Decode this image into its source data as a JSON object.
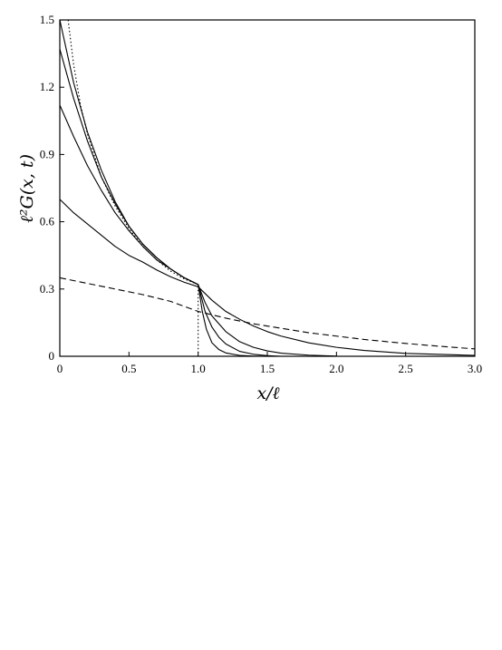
{
  "chart_data": {
    "type": "line",
    "xlabel": "x/ℓ",
    "ylabel": "ℓ²G(x, t)",
    "xlim": [
      0,
      3.0
    ],
    "ylim": [
      0,
      1.5
    ],
    "xticks": [
      {
        "value": 0,
        "label": "0"
      },
      {
        "value": 0.5,
        "label": "0.5"
      },
      {
        "value": 1.0,
        "label": "1.0"
      },
      {
        "value": 1.5,
        "label": "1.5"
      },
      {
        "value": 2.0,
        "label": "2.0"
      },
      {
        "value": 2.5,
        "label": "2.5"
      },
      {
        "value": 3.0,
        "label": "3.0"
      }
    ],
    "yticks": [
      {
        "value": 0,
        "label": "0"
      },
      {
        "value": 0.3,
        "label": "0.3"
      },
      {
        "value": 0.6,
        "label": "0.6"
      },
      {
        "value": 0.9,
        "label": "0.9"
      },
      {
        "value": 1.2,
        "label": "1.2"
      },
      {
        "value": 1.5,
        "label": "1.5"
      }
    ],
    "grid": false,
    "series": [
      {
        "style": "dotted",
        "color": "#000000",
        "x": [
          0.06,
          0.1,
          0.15,
          0.2,
          0.3,
          0.4,
          0.5,
          0.6,
          0.7,
          0.8,
          0.9,
          1.0,
          1.0
        ],
        "y": [
          1.5,
          1.3,
          1.12,
          0.99,
          0.8,
          0.67,
          0.57,
          0.49,
          0.43,
          0.38,
          0.345,
          0.32,
          0.0
        ]
      },
      {
        "style": "solid",
        "color": "#000000",
        "x": [
          0,
          0.05,
          0.1,
          0.2,
          0.3,
          0.4,
          0.5,
          0.6,
          0.7,
          0.8,
          0.9,
          1.0,
          1.03,
          1.06,
          1.1,
          1.15,
          1.2,
          1.3,
          1.4,
          1.5
        ],
        "y": [
          1.5,
          1.36,
          1.22,
          1.0,
          0.83,
          0.69,
          0.58,
          0.5,
          0.44,
          0.39,
          0.35,
          0.32,
          0.2,
          0.12,
          0.06,
          0.03,
          0.015,
          0.004,
          0.001,
          0.0
        ]
      },
      {
        "style": "solid",
        "color": "#000000",
        "x": [
          0,
          0.1,
          0.2,
          0.3,
          0.4,
          0.5,
          0.6,
          0.7,
          0.8,
          0.9,
          1.0,
          1.05,
          1.1,
          1.15,
          1.2,
          1.3,
          1.4,
          1.5,
          1.6
        ],
        "y": [
          1.37,
          1.15,
          0.96,
          0.8,
          0.68,
          0.58,
          0.5,
          0.44,
          0.39,
          0.35,
          0.32,
          0.2,
          0.13,
          0.085,
          0.055,
          0.022,
          0.009,
          0.003,
          0.0
        ]
      },
      {
        "style": "solid",
        "color": "#000000",
        "x": [
          0,
          0.1,
          0.2,
          0.3,
          0.4,
          0.5,
          0.6,
          0.7,
          0.8,
          0.9,
          1.0,
          1.05,
          1.1,
          1.2,
          1.3,
          1.4,
          1.5,
          1.6,
          1.8,
          2.0
        ],
        "y": [
          1.12,
          0.98,
          0.85,
          0.74,
          0.64,
          0.56,
          0.49,
          0.43,
          0.39,
          0.35,
          0.32,
          0.24,
          0.18,
          0.11,
          0.065,
          0.04,
          0.024,
          0.014,
          0.005,
          0.001
        ]
      },
      {
        "style": "solid",
        "color": "#000000",
        "x": [
          0,
          0.1,
          0.2,
          0.3,
          0.4,
          0.5,
          0.6,
          0.7,
          0.8,
          0.9,
          1.0,
          1.1,
          1.2,
          1.3,
          1.4,
          1.5,
          1.6,
          1.8,
          2.0,
          2.2,
          2.5,
          3.0
        ],
        "y": [
          0.7,
          0.64,
          0.59,
          0.54,
          0.49,
          0.45,
          0.42,
          0.385,
          0.355,
          0.33,
          0.31,
          0.25,
          0.2,
          0.165,
          0.135,
          0.11,
          0.09,
          0.06,
          0.04,
          0.026,
          0.013,
          0.004
        ]
      },
      {
        "style": "dashed",
        "color": "#000000",
        "x": [
          0,
          0.2,
          0.4,
          0.6,
          0.8,
          1.0,
          1.2,
          1.4,
          1.6,
          1.8,
          2.0,
          2.2,
          2.4,
          2.6,
          2.8,
          3.0
        ],
        "y": [
          0.35,
          0.325,
          0.3,
          0.275,
          0.245,
          0.2,
          0.17,
          0.145,
          0.125,
          0.105,
          0.09,
          0.075,
          0.063,
          0.052,
          0.042,
          0.033
        ]
      }
    ]
  }
}
